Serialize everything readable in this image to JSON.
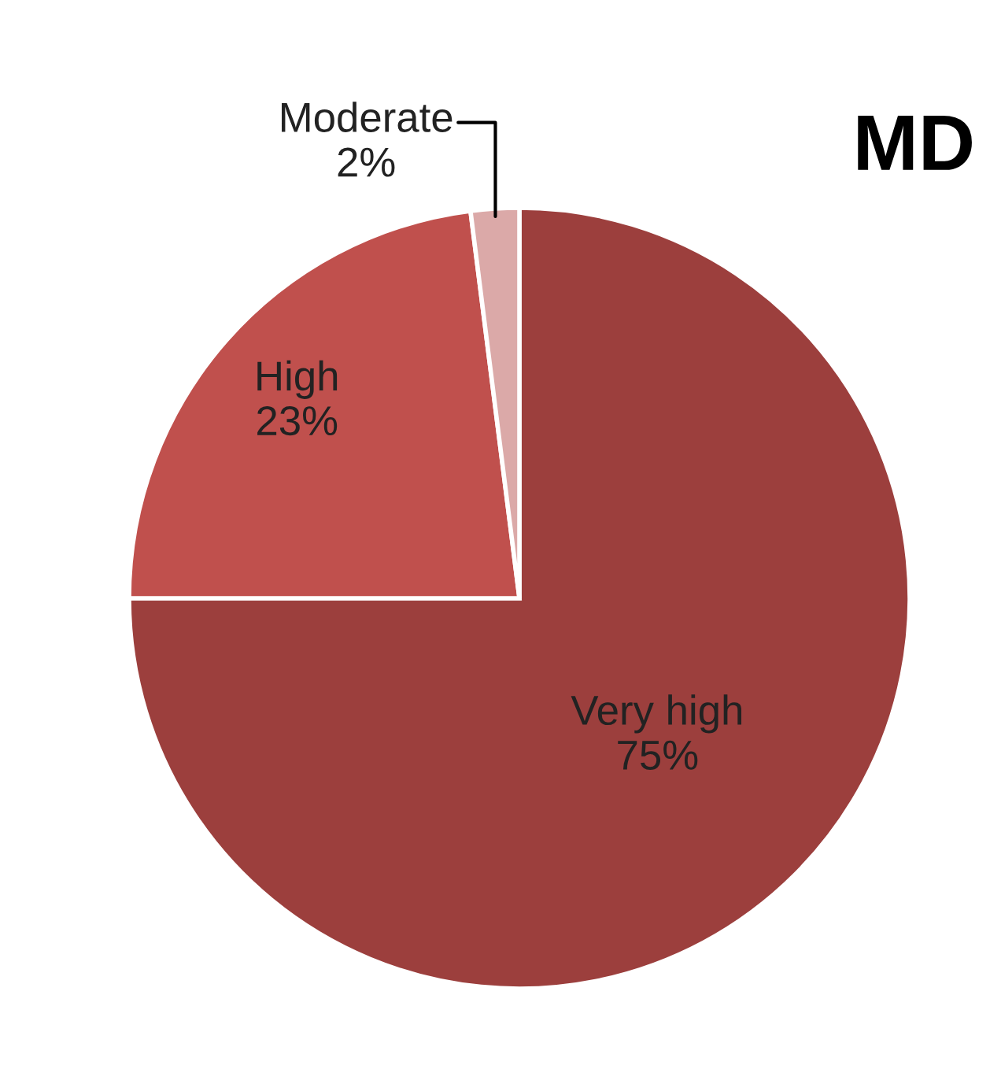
{
  "chart_data": {
    "type": "pie",
    "title": "MD",
    "categories": [
      "Very high",
      "High",
      "Moderate"
    ],
    "values": [
      75,
      23,
      2
    ],
    "colors": [
      "#9c3f3d",
      "#c0504d",
      "#dba9a8"
    ],
    "value_labels": [
      "75%",
      "23%",
      "2%"
    ]
  }
}
